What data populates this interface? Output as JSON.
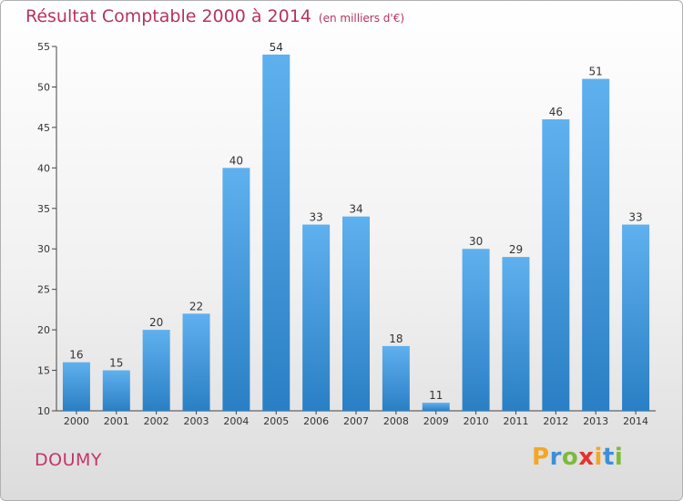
{
  "header": {
    "title": "Résultat Comptable 2000 à 2014",
    "unit": "(en milliers d'€)"
  },
  "commune": "DOUMY",
  "brand": {
    "letters": [
      "P",
      "r",
      "o",
      "x",
      "i",
      "t",
      "i"
    ],
    "colors": [
      "#f5a623",
      "#3d8fd6",
      "#7dba3b",
      "#e6332a",
      "#f5a623",
      "#3d8fd6",
      "#7dba3b"
    ]
  },
  "colors": {
    "bar_light": "#5fb0ee",
    "bar_dark": "#2a7fc4",
    "title": "#b5345e"
  },
  "chart_data": {
    "type": "bar",
    "title": "Résultat Comptable 2000 à 2014",
    "subtitle": "(en milliers d'€)",
    "categories": [
      "2000",
      "2001",
      "2002",
      "2003",
      "2004",
      "2005",
      "2006",
      "2007",
      "2008",
      "2009",
      "2010",
      "2011",
      "2012",
      "2013",
      "2014"
    ],
    "values": [
      16,
      15,
      20,
      22,
      40,
      54,
      33,
      34,
      18,
      11,
      30,
      29,
      46,
      51,
      33
    ],
    "ylim": [
      10,
      55
    ],
    "yticks": [
      10,
      15,
      20,
      25,
      30,
      35,
      40,
      45,
      50,
      55
    ],
    "grid": false,
    "legend": "none"
  }
}
